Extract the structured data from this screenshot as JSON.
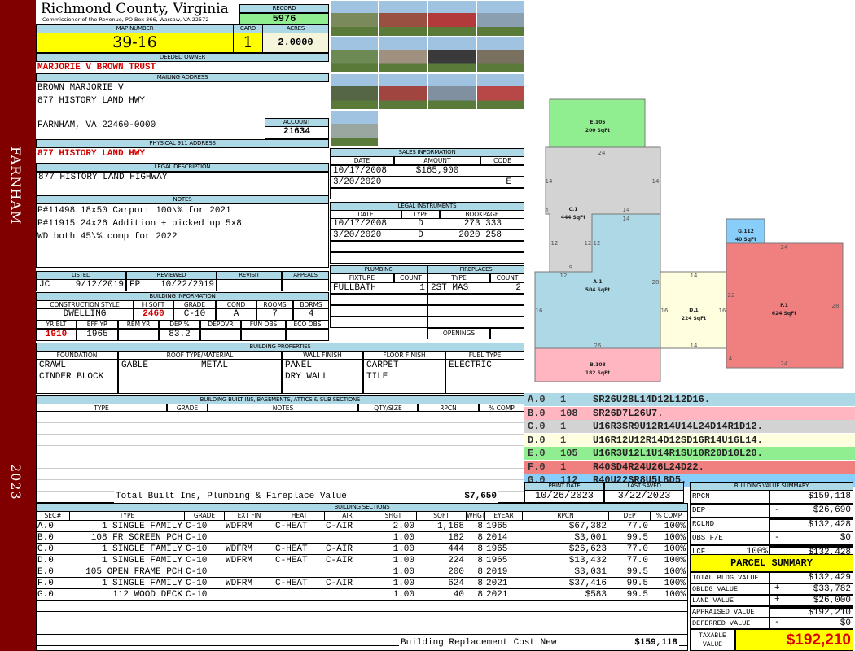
{
  "sidebar": {
    "district": "FARNHAM",
    "year": "2023",
    "color": "#800000"
  },
  "header": {
    "county": "Richmond County, Virginia",
    "subtitle": "Commissioner of the Revenue, PO Box 366, Warsaw, VA 22572",
    "record_label": "RECORD",
    "record": "5976",
    "map_label": "MAP NUMBER",
    "map_number": "39-16",
    "card_label": "CARD",
    "card": "1",
    "acres_label": "ACRES",
    "acres": "2.0000"
  },
  "owner": {
    "label": "DEEDED OWNER",
    "name": "MARJORIE V BROWN TRUST"
  },
  "mailing": {
    "label": "MAILING ADDRESS",
    "lines": [
      "BROWN MARJORIE V",
      "877 HISTORY LAND HWY",
      "FARNHAM, VA 22460-0000"
    ],
    "account_label": "ACCOUNT",
    "account": "21634"
  },
  "physical": {
    "label": "PHYSICAL 911 ADDRESS",
    "value": "877 HISTORY LAND HWY"
  },
  "legal": {
    "label": "LEGAL DESCRIPTION",
    "value": "877 HISTORY LAND HIGHWAY"
  },
  "notes": {
    "label": "NOTES",
    "lines": [
      "P#11498 18x50 Carport 100\\% for 2021",
      "P#11915 24x26 Addition + picked up 5x8",
      "WD both 45\\% comp for 2022"
    ]
  },
  "listing": {
    "headers": [
      "LISTED",
      "REVIEWED",
      "REVISIT",
      "APPEALS"
    ],
    "listed_by": "JC",
    "listed_date": "9/12/2019",
    "reviewed_by": "FP",
    "reviewed_date": "10/22/2019"
  },
  "building_info": {
    "label": "BUILDING INFORMATION",
    "headers1": [
      "CONSTRUCTION STYLE",
      "H SQFT",
      "GRADE",
      "COND",
      "ROOMS",
      "BDRMS"
    ],
    "values1": [
      "DWELLING",
      "2460",
      "C-10",
      "A",
      "7",
      "4"
    ],
    "headers2": [
      "YR BLT",
      "EFF YR",
      "REM YR",
      "DEP %",
      "DEPOVR",
      "FUN OBS",
      "ECO OBS"
    ],
    "values2": [
      "1910",
      "1965",
      "",
      "83.2",
      "",
      "",
      ""
    ]
  },
  "properties": {
    "label": "BUILDING PROPERTIES",
    "headers": [
      "FOUNDATION",
      "ROOF TYPE/MATERIAL",
      "WALL FINISH",
      "FLOOR FINISH",
      "FUEL TYPE"
    ],
    "foundation": [
      "CRAWL",
      "CINDER BLOCK"
    ],
    "roof_type": "GABLE",
    "roof_material": "METAL",
    "wall": [
      "PANEL",
      "DRY WALL"
    ],
    "floor": [
      "CARPET",
      "TILE"
    ],
    "fuel": [
      "ELECTRIC"
    ]
  },
  "builtins": {
    "label": "BUILDING BUILT INS, BASEMENTS, ATTICS & SUB SECTIONS",
    "headers": [
      "TYPE",
      "GRADE",
      "NOTES",
      "QTY/SIZE",
      "RPCN",
      "% COMP"
    ],
    "total_label": "Total Built Ins, Plumbing & Fireplace Value",
    "total": "$7,650"
  },
  "sales": {
    "label": "SALES INFORMATION",
    "headers": [
      "DATE",
      "AMOUNT",
      "CODE"
    ],
    "rows": [
      [
        "10/17/2008",
        "$165,900",
        ""
      ],
      [
        "3/20/2020",
        "",
        "E"
      ]
    ]
  },
  "instruments": {
    "label": "LEGAL INSTRUMENTS",
    "headers": [
      "DATE",
      "TYPE",
      "BOOKPAGE"
    ],
    "rows": [
      [
        "10/17/2008",
        "D",
        "273 333"
      ],
      [
        "3/20/2020",
        "D",
        "2020 258"
      ]
    ]
  },
  "plumbing": {
    "label": "PLUMBING",
    "headers": [
      "FIXTURE",
      "COUNT"
    ],
    "rows": [
      [
        "FULLBATH",
        "1"
      ]
    ]
  },
  "fireplaces": {
    "label": "FIREPLACES",
    "headers": [
      "TYPE",
      "COUNT"
    ],
    "rows": [
      [
        "2ST MAS",
        "2"
      ]
    ],
    "openings_label": "OPENINGS"
  },
  "sketch": {
    "areas": [
      {
        "label": "E.105",
        "sqft": "200 SqFt",
        "color": "#90ee90"
      },
      {
        "label": "C.1",
        "sqft": "444 SqFt",
        "color": "#d3d3d3"
      },
      {
        "label": "A.1",
        "sqft": "504 SqFt",
        "color": "#add8e6"
      },
      {
        "label": "B.108",
        "sqft": "182 SqFt",
        "color": "#ffb6c1"
      },
      {
        "label": "D.1",
        "sqft": "224 SqFt",
        "color": "#ffffe0"
      },
      {
        "label": "F.1",
        "sqft": "624 SqFt",
        "color": "#f08080"
      },
      {
        "label": "G.112",
        "sqft": "40 SqFt",
        "color": "#87cefa"
      }
    ],
    "dims": [
      "24",
      "14",
      "14",
      "1",
      "14",
      "12",
      "12",
      "14",
      "12",
      "12",
      "28",
      "16",
      "26",
      "9",
      "14",
      "16",
      "16",
      "14",
      "24",
      "22",
      "28",
      "4",
      "24"
    ],
    "codes": [
      {
        "sec": "A.0",
        "num": "1",
        "vector": "SR26U28L14D12L12D16.",
        "color": "#add8e6"
      },
      {
        "sec": "B.0",
        "num": "108",
        "vector": "SR26D7L26U7.",
        "color": "#ffb6c1"
      },
      {
        "sec": "C.0",
        "num": "1",
        "vector": "U16R3SR9U12R14U14L24D14R1D12.",
        "color": "#d3d3d3"
      },
      {
        "sec": "D.0",
        "num": "1",
        "vector": "U16R12U12R14D12SD16R14U16L14.",
        "color": "#ffffe0"
      },
      {
        "sec": "E.0",
        "num": "105",
        "vector": "U16R3U12L1U14R1SU10R20D10L20.",
        "color": "#90ee90"
      },
      {
        "sec": "F.0",
        "num": "1",
        "vector": "R40SD4R24U26L24D22.",
        "color": "#f08080"
      },
      {
        "sec": "G.0",
        "num": "112",
        "vector": "R40U22SR8U5L8D5.",
        "color": "#87cefa"
      }
    ]
  },
  "print": {
    "print_label": "PRINT DATE",
    "print_date": "10/26/2023",
    "saved_label": "LAST SAVED",
    "saved": "3/22/2023"
  },
  "value_summary": {
    "label": "BUILDING VALUE SUMMARY",
    "rows": [
      {
        "label": "RPCN",
        "pct": "",
        "sign": "",
        "value": "$159,118"
      },
      {
        "label": "DEP",
        "pct": "",
        "sign": "-",
        "value": "$26,690"
      },
      {
        "label": "RCLND",
        "pct": "",
        "sign": "",
        "value": "$132,428"
      },
      {
        "label": "OBS F/E",
        "pct": "",
        "sign": "-",
        "value": "$0"
      },
      {
        "label": "LCF",
        "pct": "100%",
        "sign": "",
        "value": "$132,428"
      }
    ]
  },
  "parcel": {
    "label": "PARCEL SUMMARY",
    "rows": [
      {
        "label": "TOTAL BLDG VALUE",
        "sign": "",
        "value": "$132,429"
      },
      {
        "label": "OBLDG VALUE",
        "sign": "+",
        "value": "$33,782"
      },
      {
        "label": "LAND VALUE",
        "sign": "+",
        "value": "$26,000"
      },
      {
        "label": "APPRAISED VALUE",
        "sign": "",
        "value": "$192,210"
      },
      {
        "label": "DEFERRED VALUE",
        "sign": "-",
        "value": "$0"
      }
    ],
    "taxable_label": "TAXABLE VALUE",
    "taxable": "$192,210"
  },
  "sections": {
    "label": "BUILDING SECTIONS",
    "headers": [
      "SEC#",
      "TYPE",
      "GRADE",
      "EXT FIN",
      "HEAT",
      "AIR",
      "SHGT",
      "SQFT",
      "WHGT",
      "EYEAR",
      "RPCN",
      "DEP",
      "% COMP"
    ],
    "rows": [
      [
        "A.0",
        "1 SINGLE FAMILY",
        "C-10",
        "WDFRM",
        "C-HEAT",
        "C-AIR",
        "2.00",
        "1,168",
        "8",
        "1965",
        "$67,382",
        "77.0",
        "100%"
      ],
      [
        "B.0",
        "108 FR SCREEN PCH",
        "C-10",
        "",
        "",
        "",
        "1.00",
        "182",
        "8",
        "2014",
        "$3,001",
        "99.5",
        "100%"
      ],
      [
        "C.0",
        "1 SINGLE FAMILY",
        "C-10",
        "WDFRM",
        "C-HEAT",
        "C-AIR",
        "1.00",
        "444",
        "8",
        "1965",
        "$26,623",
        "77.0",
        "100%"
      ],
      [
        "D.0",
        "1 SINGLE FAMILY",
        "C-10",
        "WDFRM",
        "C-HEAT",
        "C-AIR",
        "1.00",
        "224",
        "8",
        "1965",
        "$13,432",
        "77.0",
        "100%"
      ],
      [
        "E.0",
        "105 OPEN FRAME PCH",
        "C-10",
        "",
        "",
        "",
        "1.00",
        "200",
        "8",
        "2019",
        "$3,031",
        "99.5",
        "100%"
      ],
      [
        "F.0",
        "1 SINGLE FAMILY",
        "C-10",
        "WDFRM",
        "C-HEAT",
        "C-AIR",
        "1.00",
        "624",
        "8",
        "2021",
        "$37,416",
        "99.5",
        "100%"
      ],
      [
        "G.0",
        "112 WOOD DECK",
        "C-10",
        "",
        "",
        "",
        "1.00",
        "40",
        "8",
        "2021",
        "$583",
        "99.5",
        "100%"
      ]
    ],
    "replacement_label": "Building Replacement Cost New",
    "replacement": "$159,118"
  },
  "colors": {
    "header": "#add8e6",
    "highlight": "#ffff00",
    "record": "#90ee90",
    "value_red": "#d40000"
  }
}
